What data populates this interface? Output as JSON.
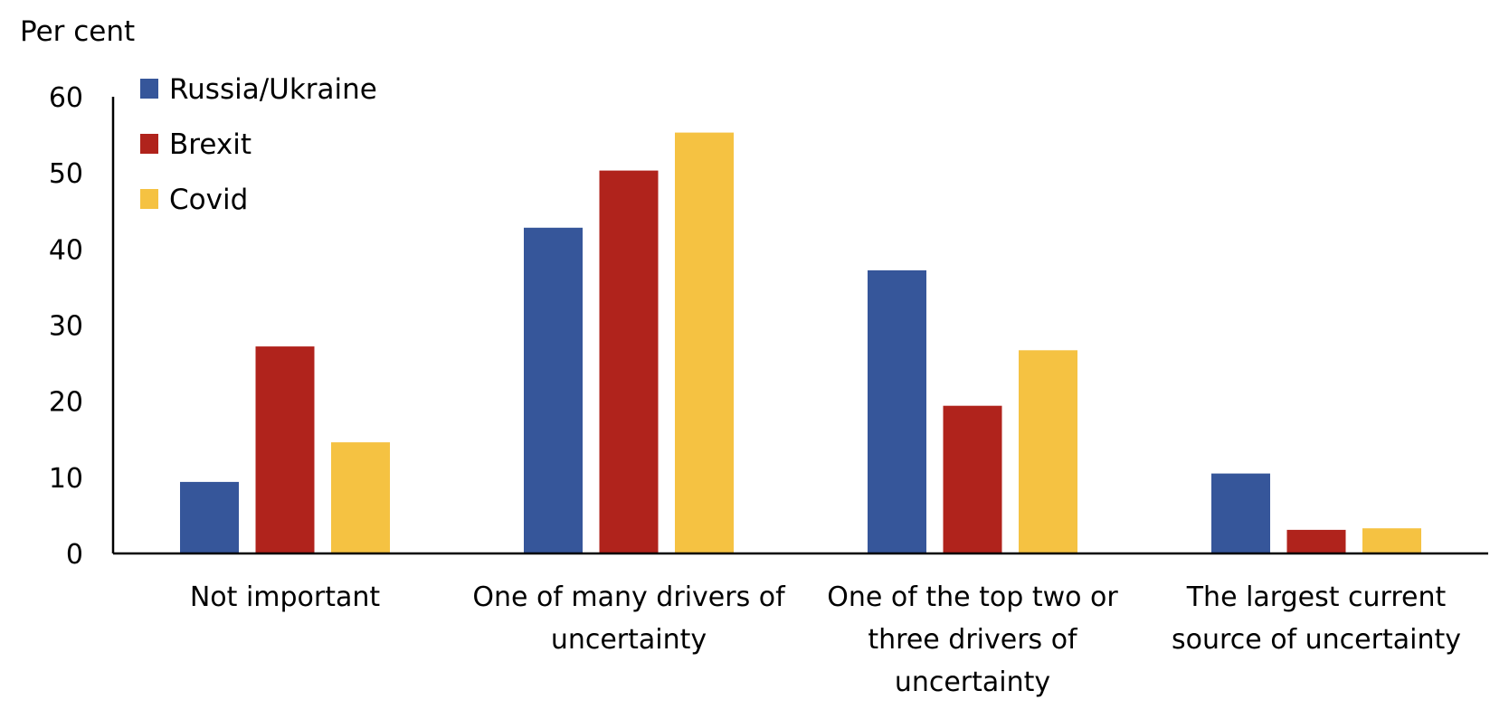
{
  "chart_data": {
    "type": "bar",
    "title": "",
    "ylabel": "Per cent",
    "xlabel": "",
    "ylim": [
      0,
      60
    ],
    "yticks": [
      0,
      10,
      20,
      30,
      40,
      50,
      60
    ],
    "grid": false,
    "legend_position": "top-left",
    "categories": [
      [
        "Not important"
      ],
      [
        "One of many drivers of",
        "uncertainty"
      ],
      [
        "One of the top two or",
        "three drivers of",
        "uncertainty"
      ],
      [
        "The largest current",
        "source of uncertainty"
      ]
    ],
    "series": [
      {
        "name": "Russia/Ukraine",
        "color": "#36569A",
        "values": [
          9.4,
          42.8,
          37.2,
          10.5
        ]
      },
      {
        "name": "Brexit",
        "color": "#B0231C",
        "values": [
          27.2,
          50.3,
          19.4,
          3.1
        ]
      },
      {
        "name": "Covid",
        "color": "#F5C242",
        "values": [
          14.6,
          55.3,
          26.7,
          3.3
        ]
      }
    ]
  }
}
